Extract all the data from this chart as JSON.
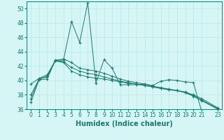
{
  "xlabel": "Humidex (Indice chaleur)",
  "background_color": "#d6f5f5",
  "grid_color": "#b8e8e8",
  "line_color": "#1a7a6e",
  "xlim": [
    -0.5,
    23.5
  ],
  "ylim": [
    36,
    51
  ],
  "yticks": [
    36,
    38,
    40,
    42,
    44,
    46,
    48,
    50
  ],
  "xticks": [
    0,
    1,
    2,
    3,
    4,
    5,
    6,
    7,
    8,
    9,
    10,
    11,
    12,
    13,
    14,
    15,
    16,
    17,
    18,
    19,
    20,
    21,
    23
  ],
  "xlabel_fontsize": 7,
  "tick_fontsize": 5.5,
  "series": [
    [
      37.0,
      40.1,
      40.2,
      42.8,
      42.8,
      48.2,
      45.3,
      50.8,
      39.6,
      42.9,
      41.7,
      39.4,
      39.4,
      39.4,
      39.5,
      39.3,
      39.9,
      40.1,
      40.0,
      39.8,
      39.7,
      35.8,
      null,
      35.7
    ],
    [
      37.5,
      40.2,
      40.5,
      42.8,
      43.0,
      42.5,
      41.7,
      41.5,
      41.3,
      41.0,
      40.6,
      40.2,
      39.9,
      39.7,
      39.5,
      39.2,
      39.0,
      38.8,
      38.6,
      38.3,
      37.8,
      37.2,
      null,
      36.0
    ],
    [
      39.5,
      40.3,
      40.8,
      42.7,
      42.5,
      41.3,
      40.8,
      40.5,
      40.3,
      40.2,
      40.0,
      39.8,
      39.6,
      39.5,
      39.3,
      39.1,
      38.9,
      38.7,
      38.6,
      38.4,
      38.0,
      37.5,
      null,
      36.2
    ],
    [
      38.0,
      40.2,
      40.6,
      42.8,
      42.6,
      41.8,
      41.3,
      41.0,
      40.8,
      40.5,
      40.2,
      39.9,
      39.7,
      39.5,
      39.3,
      39.1,
      38.9,
      38.7,
      38.6,
      38.3,
      37.9,
      37.3,
      null,
      36.1
    ]
  ]
}
